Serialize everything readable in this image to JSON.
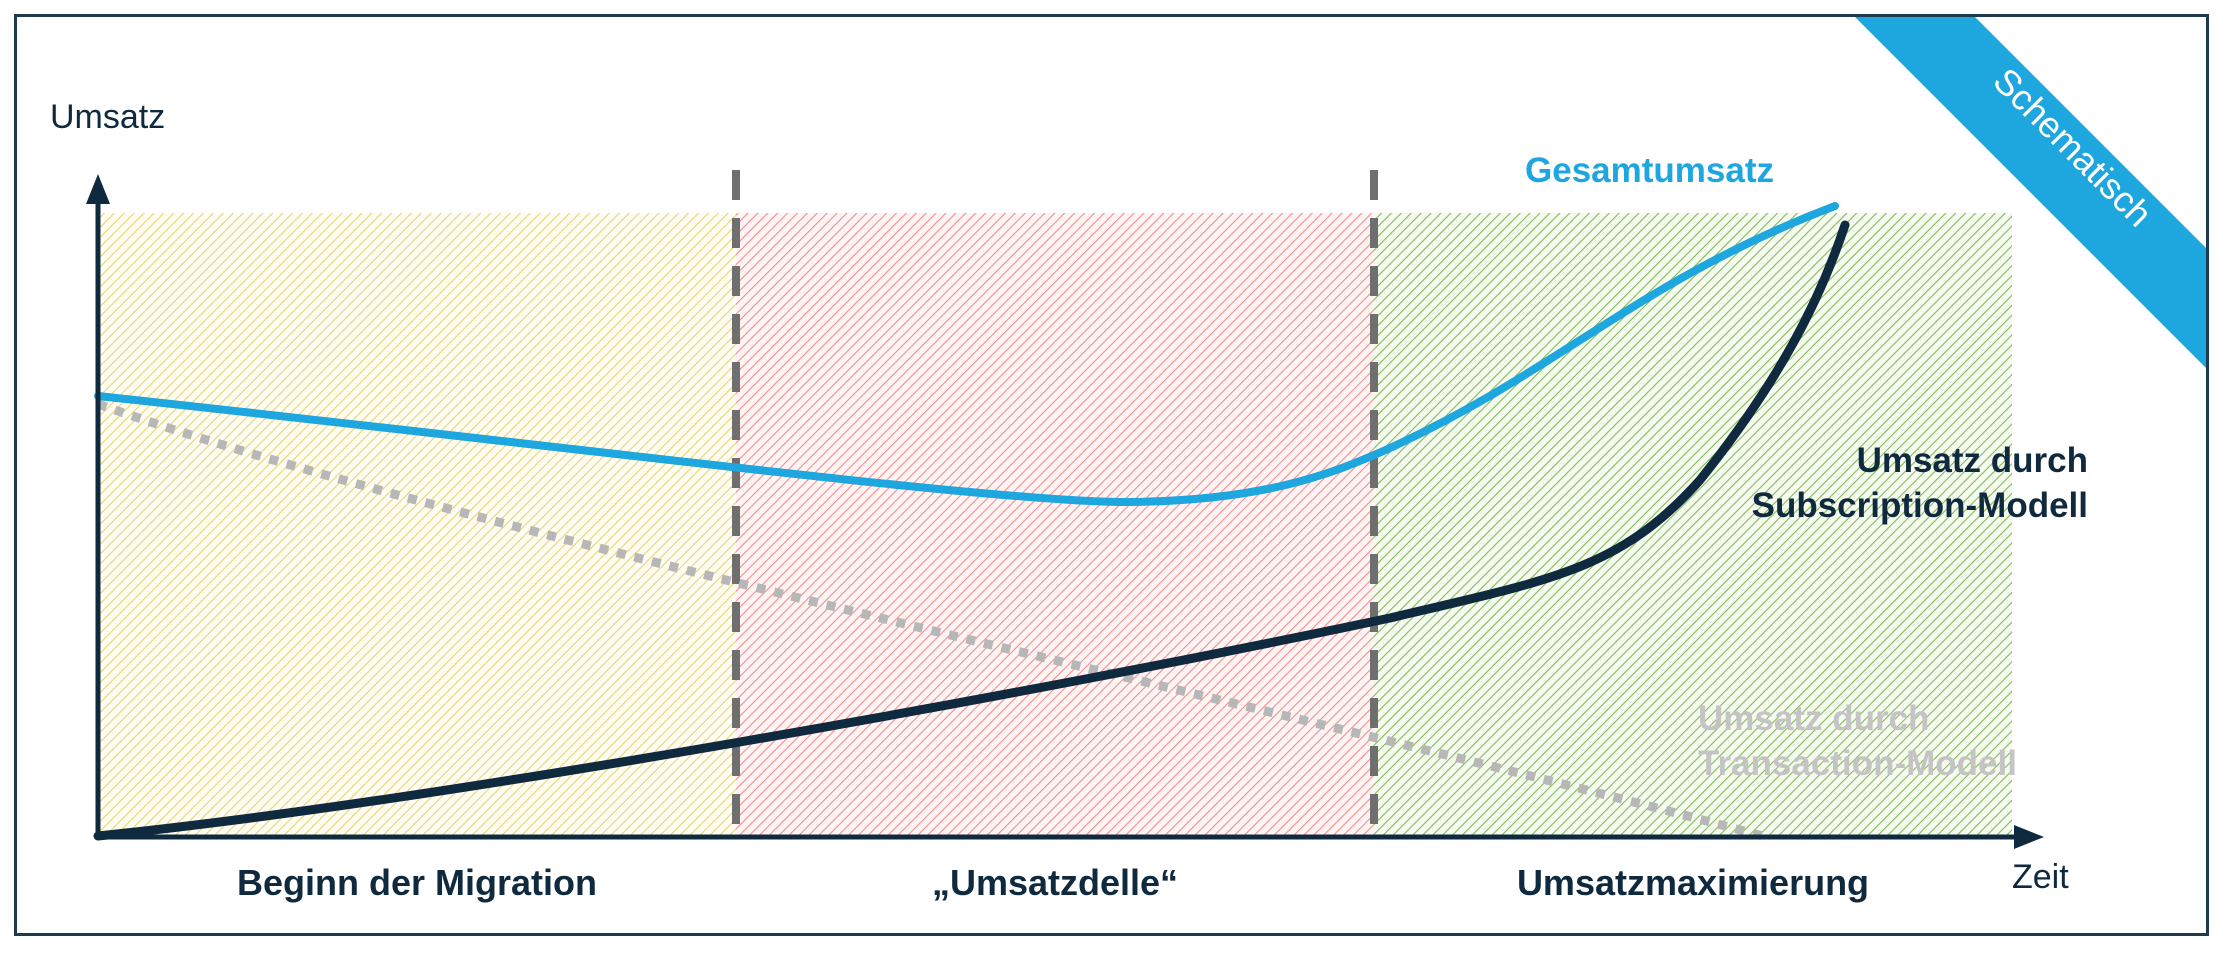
{
  "axis": {
    "ylabel": "Umsatz",
    "xlabel": "Zeit"
  },
  "phases": [
    {
      "label": "Beginn der Migration",
      "color": "#f0e3a0"
    },
    {
      "label": "„Umsatzdelle“",
      "color": "#f3a0a0"
    },
    {
      "label": "Umsatzmaximierung",
      "color": "#9cc27a"
    }
  ],
  "series": {
    "total": {
      "label": "Gesamtumsatz",
      "color": "#1ea6df"
    },
    "subscription": {
      "label_line1": "Umsatz durch",
      "label_line2": "Subscription-Modell",
      "color": "#0f2a3e"
    },
    "transaction": {
      "label_line1": "Umsatz durch",
      "label_line2": "Transaction-Modell",
      "color": "#b7b7b7"
    }
  },
  "badge": {
    "label": "Schematisch",
    "color": "#1ea6df"
  }
}
